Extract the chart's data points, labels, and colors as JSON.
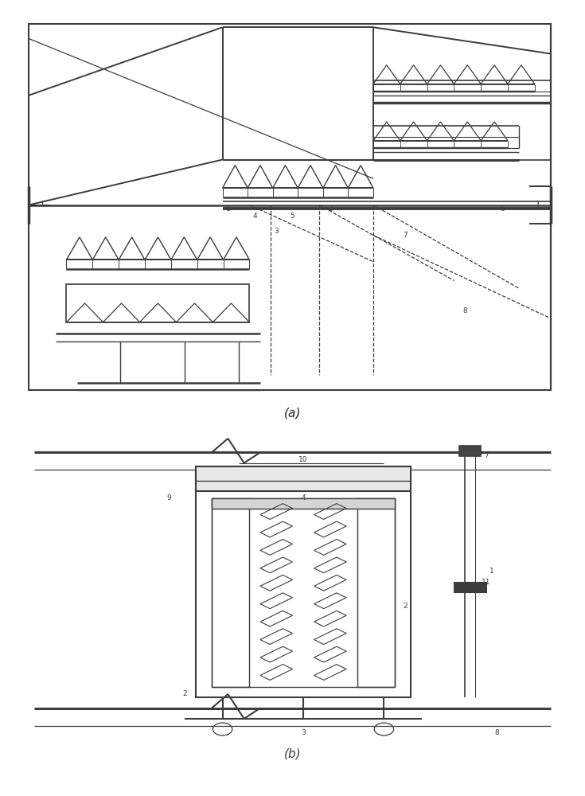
{
  "bg": "#ffffff",
  "lc": "#3c3c3c",
  "fig_w": 7.35,
  "fig_h": 10.0,
  "label_a": "(a)",
  "label_b": "(b)"
}
